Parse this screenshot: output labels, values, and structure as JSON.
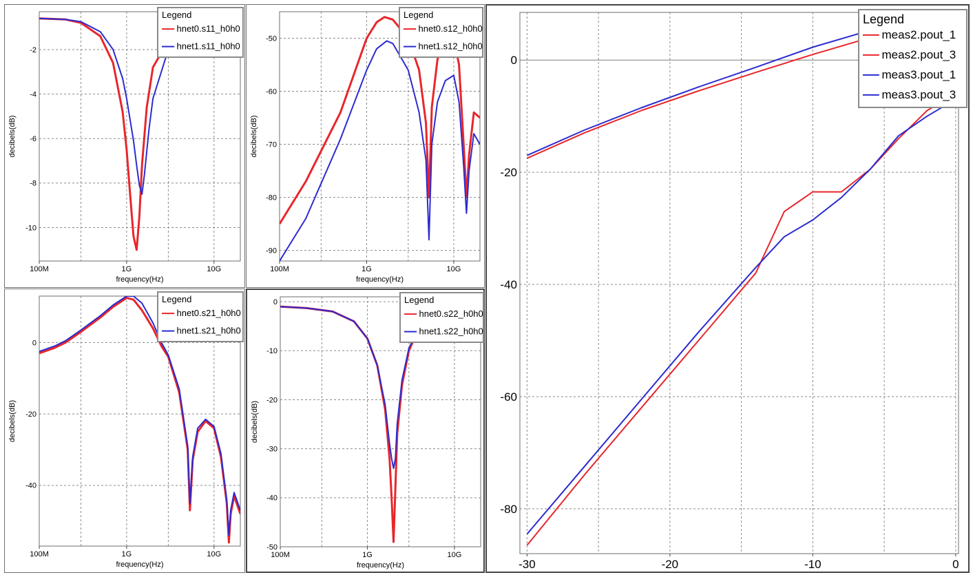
{
  "chart_data": [
    {
      "type": "line",
      "xlabel": "frequency(Hz)",
      "ylabel": "decibels(dB)",
      "xscale": "log",
      "xlim": [
        100000000,
        20000000000
      ],
      "ylim": [
        -11.5,
        -0.3
      ],
      "xticks": [
        {
          "v": 100000000,
          "label": "100M"
        },
        {
          "v": 1000000000,
          "label": "1G"
        },
        {
          "v": 10000000000,
          "label": "10G"
        }
      ],
      "yticks": [
        -2,
        -4,
        -6,
        -8,
        -10
      ],
      "legend": {
        "title": "Legend",
        "position": "top-right"
      },
      "series": [
        {
          "name": "hnet0.s11_h0h0",
          "color": "#e8262b",
          "x": [
            100000000,
            200000000,
            300000000,
            500000000,
            700000000,
            900000000,
            1000000000,
            1100000000,
            1200000000,
            1300000000,
            1400000000,
            1500000000,
            1700000000,
            2000000000,
            3000000000,
            5000000000,
            8000000000,
            10000000000,
            12000000000,
            15000000000,
            20000000000
          ],
          "y": [
            -0.6,
            -0.65,
            -0.8,
            -1.4,
            -2.6,
            -4.8,
            -6.5,
            -8.6,
            -10.4,
            -11.0,
            -9.5,
            -7.2,
            -4.6,
            -2.8,
            -1.6,
            -1.2,
            -1.5,
            -1.7,
            -1.6,
            -1.3,
            -1.0
          ]
        },
        {
          "name": "hnet1.s11_h0h0",
          "color": "#2b2bd0",
          "x": [
            100000000,
            200000000,
            300000000,
            500000000,
            700000000,
            900000000,
            1000000000,
            1200000000,
            1300000000,
            1400000000,
            1500000000,
            1600000000,
            1800000000,
            2000000000,
            3000000000,
            5000000000,
            8000000000,
            10000000000,
            12000000000,
            15000000000,
            20000000000
          ],
          "y": [
            -0.6,
            -0.65,
            -0.75,
            -1.2,
            -2.0,
            -3.3,
            -4.2,
            -6.1,
            -7.2,
            -8.1,
            -8.5,
            -7.6,
            -5.6,
            -4.2,
            -2.0,
            -1.3,
            -1.5,
            -1.7,
            -1.7,
            -1.4,
            -1.0
          ]
        }
      ]
    },
    {
      "type": "line",
      "xlabel": "frequency(Hz)",
      "ylabel": "decibels(dB)",
      "xscale": "log",
      "xlim": [
        100000000,
        20000000000
      ],
      "ylim": [
        -92,
        -45
      ],
      "xticks": [
        {
          "v": 100000000,
          "label": "100M"
        },
        {
          "v": 1000000000,
          "label": "1G"
        },
        {
          "v": 10000000000,
          "label": "10G"
        }
      ],
      "yticks": [
        -50,
        -60,
        -70,
        -80,
        -90
      ],
      "legend": {
        "title": "Legend",
        "position": "top-right"
      },
      "series": [
        {
          "name": "hnet0.s12_h0h0",
          "color": "#e8262b",
          "x": [
            100000000,
            200000000,
            500000000,
            1000000000,
            1300000000,
            1600000000,
            2000000000,
            3000000000,
            4000000000,
            4800000000,
            5200000000,
            5600000000,
            6500000000,
            8000000000,
            10000000000,
            11500000000,
            13000000000,
            14000000000,
            15000000000,
            17000000000,
            20000000000
          ],
          "y": [
            -85,
            -77,
            -64,
            -50,
            -47,
            -46,
            -46.5,
            -50,
            -56,
            -66,
            -80,
            -63,
            -54,
            -50,
            -50,
            -55,
            -70,
            -80,
            -72,
            -64,
            -65
          ]
        },
        {
          "name": "hnet1.s12_h0h0",
          "color": "#2b2bd0",
          "x": [
            100000000,
            200000000,
            500000000,
            1000000000,
            1300000000,
            1700000000,
            2000000000,
            3000000000,
            4000000000,
            4800000000,
            5200000000,
            5600000000,
            6500000000,
            8000000000,
            10000000000,
            11500000000,
            13000000000,
            14000000000,
            15000000000,
            17000000000,
            20000000000
          ],
          "y": [
            -92,
            -84,
            -69,
            -56,
            -52,
            -50.5,
            -51,
            -56,
            -64,
            -73,
            -88,
            -70,
            -62,
            -58,
            -57,
            -62,
            -74,
            -83,
            -75,
            -68,
            -70
          ]
        }
      ]
    },
    {
      "type": "line",
      "xlabel": "frequency(Hz)",
      "ylabel": "decibels(dB)",
      "xscale": "log",
      "xlim": [
        100000000,
        20000000000
      ],
      "ylim": [
        -57,
        13
      ],
      "xticks": [
        {
          "v": 100000000,
          "label": "100M"
        },
        {
          "v": 1000000000,
          "label": "1G"
        },
        {
          "v": 10000000000,
          "label": "10G"
        }
      ],
      "yticks": [
        0,
        -20,
        -40
      ],
      "legend": {
        "title": "Legend",
        "position": "top-right"
      },
      "series": [
        {
          "name": "hnet0.s21_h0h0",
          "color": "#e8262b",
          "x": [
            100000000,
            150000000,
            200000000,
            300000000,
            500000000,
            700000000,
            1000000000,
            1200000000,
            1500000000,
            2000000000,
            2500000000,
            3000000000,
            4000000000,
            5000000000,
            5300000000,
            5700000000,
            6500000000,
            8000000000,
            10000000000,
            12000000000,
            14000000000,
            14800000000,
            15500000000,
            17000000000,
            20000000000
          ],
          "y": [
            -3,
            -1.5,
            0,
            3,
            7,
            10,
            12.5,
            12,
            9,
            4,
            -1,
            -4,
            -14,
            -30,
            -47,
            -33,
            -25,
            -22,
            -24,
            -32,
            -45,
            -56,
            -48,
            -43,
            -48
          ]
        },
        {
          "name": "hnet1.s21_h0h0",
          "color": "#2b2bd0",
          "x": [
            100000000,
            150000000,
            200000000,
            300000000,
            500000000,
            700000000,
            1000000000,
            1200000000,
            1500000000,
            2000000000,
            2500000000,
            3000000000,
            4000000000,
            5000000000,
            5300000000,
            5700000000,
            6500000000,
            8000000000,
            10000000000,
            12000000000,
            14000000000,
            14800000000,
            15500000000,
            17000000000,
            20000000000
          ],
          "y": [
            -2.5,
            -1,
            0.5,
            3.5,
            7.5,
            10.5,
            13,
            13,
            11,
            5.5,
            0,
            -3.5,
            -13,
            -29,
            -45,
            -32,
            -24,
            -21.5,
            -23.5,
            -31,
            -44,
            -54,
            -47,
            -42,
            -47
          ]
        }
      ]
    },
    {
      "type": "line",
      "xlabel": "frequency(Hz)",
      "ylabel": "decibels(dB)",
      "xscale": "log",
      "xlim": [
        100000000,
        20000000000
      ],
      "ylim": [
        -50,
        1
      ],
      "xticks": [
        {
          "v": 100000000,
          "label": "100M"
        },
        {
          "v": 1000000000,
          "label": "1G"
        },
        {
          "v": 10000000000,
          "label": "10G"
        }
      ],
      "yticks": [
        0,
        -10,
        -20,
        -30,
        -40,
        -50
      ],
      "legend": {
        "title": "Legend",
        "position": "top-right"
      },
      "series": [
        {
          "name": "hnet0.s22_h0h0",
          "color": "#e8262b",
          "x": [
            100000000,
            200000000,
            400000000,
            700000000,
            1000000000,
            1300000000,
            1600000000,
            1800000000,
            1900000000,
            2000000000,
            2100000000,
            2200000000,
            2500000000,
            3000000000,
            4000000000,
            6000000000,
            10000000000,
            15000000000,
            20000000000
          ],
          "y": [
            -1,
            -1.3,
            -2,
            -4,
            -7.5,
            -13,
            -22,
            -32,
            -40,
            -49,
            -38,
            -27,
            -17,
            -10,
            -5,
            -2,
            -0.4,
            0,
            -0.4
          ]
        },
        {
          "name": "hnet1.s22_h0h0",
          "color": "#2b2bd0",
          "x": [
            100000000,
            200000000,
            400000000,
            700000000,
            1000000000,
            1300000000,
            1600000000,
            1800000000,
            1900000000,
            2000000000,
            2100000000,
            2200000000,
            2500000000,
            3000000000,
            4000000000,
            6000000000,
            10000000000,
            15000000000,
            20000000000
          ],
          "y": [
            -1,
            -1.3,
            -2,
            -4,
            -7.5,
            -13,
            -21,
            -29,
            -32,
            -34,
            -32,
            -25,
            -16,
            -9.5,
            -5,
            -2,
            -0.4,
            0,
            -0.4
          ]
        }
      ]
    },
    {
      "type": "line",
      "xlabel": "",
      "ylabel": "",
      "xlim": [
        -30.5,
        0.2
      ],
      "ylim": [
        -88,
        8.5
      ],
      "xticks": [
        {
          "v": -30,
          "label": "-30"
        },
        {
          "v": -20,
          "label": "-20"
        },
        {
          "v": -10,
          "label": "-10"
        },
        {
          "v": 0,
          "label": "0"
        }
      ],
      "yticks": [
        0,
        -20,
        -40,
        -60,
        -80
      ],
      "legend": {
        "title": "Legend",
        "position": "top-right"
      },
      "series": [
        {
          "name": "meas2.pout_1",
          "color": "#e8262b",
          "x": [
            -30,
            -26,
            -22,
            -18,
            -14,
            -10,
            -6,
            -2,
            0
          ],
          "y": [
            -17.5,
            -13,
            -9,
            -5.5,
            -2.2,
            1,
            4,
            6.5,
            7.5
          ]
        },
        {
          "name": "meas2.pout_3",
          "color": "#e8262b",
          "x": [
            -30,
            -26,
            -22,
            -18,
            -14,
            -12,
            -10,
            -8,
            -6,
            -4,
            -2,
            0
          ],
          "y": [
            -86.5,
            -74,
            -62,
            -50,
            -38,
            -27,
            -23.5,
            -23.5,
            -19.5,
            -14,
            -9,
            -6
          ]
        },
        {
          "name": "meas3.pout_1",
          "color": "#2b2bd0",
          "x": [
            -30,
            -26,
            -22,
            -18,
            -14,
            -10,
            -6,
            -2,
            0
          ],
          "y": [
            -17,
            -12.5,
            -8.5,
            -4.8,
            -1.3,
            2.3,
            5.3,
            7.2,
            8
          ]
        },
        {
          "name": "meas3.pout_3",
          "color": "#2b2bd0",
          "x": [
            -30,
            -26,
            -22,
            -18,
            -14,
            -12,
            -10,
            -8,
            -6,
            -4,
            -2,
            0
          ],
          "y": [
            -84.5,
            -72.5,
            -60.5,
            -48.5,
            -37,
            -31.5,
            -28.5,
            -24.5,
            -19.5,
            -13.5,
            -10,
            -7
          ]
        }
      ]
    }
  ]
}
